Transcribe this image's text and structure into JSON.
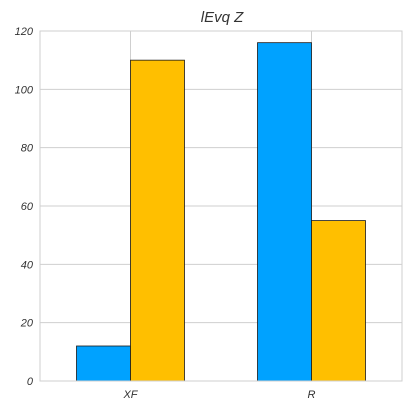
{
  "chart_data": {
    "type": "bar",
    "title": "lEvq Z",
    "xlabel": "",
    "ylabel": "",
    "categories": [
      "XF",
      "R"
    ],
    "series": [
      {
        "color": "#00a2ff",
        "values": [
          12,
          116
        ]
      },
      {
        "color": "#ffbf00",
        "values": [
          110,
          55
        ]
      }
    ],
    "ylim": [
      0,
      120
    ],
    "yticks": [
      0,
      20,
      40,
      60,
      80,
      100,
      120
    ],
    "grid": true,
    "legend": "none"
  }
}
